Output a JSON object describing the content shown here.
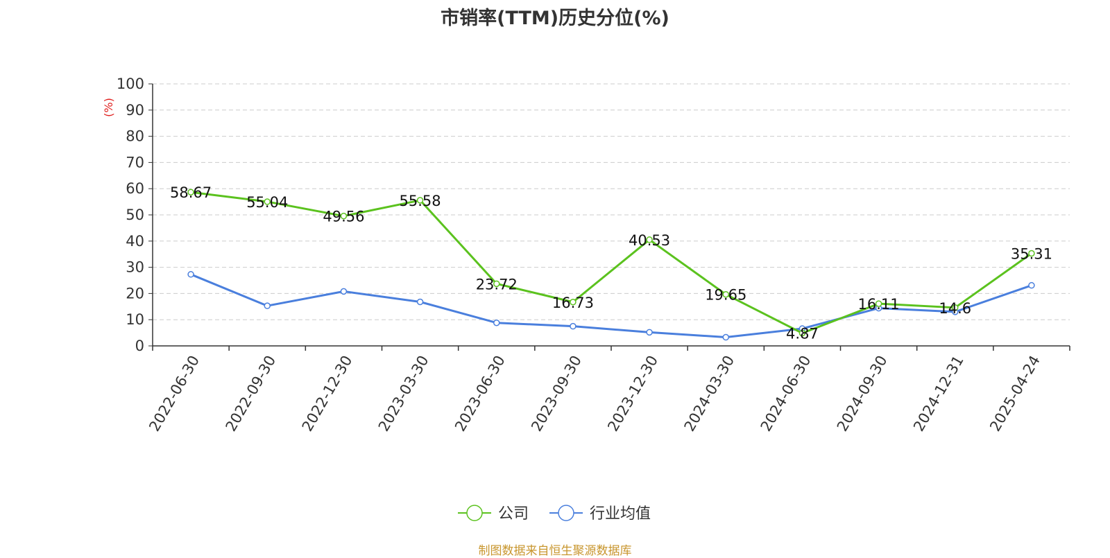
{
  "chart_data": {
    "type": "line",
    "title": "市销率(TTM)历史分位(%)",
    "ylabel": "(%)",
    "xlabel": "",
    "ylim": [
      0,
      100
    ],
    "yticks": [
      "0",
      "10",
      "20",
      "30",
      "40",
      "50",
      "60",
      "70",
      "80",
      "90",
      "100"
    ],
    "grid": true,
    "legend_position": "bottom-center",
    "categories": [
      "2022-06-30",
      "2022-09-30",
      "2022-12-30",
      "2023-03-30",
      "2023-06-30",
      "2023-09-30",
      "2023-12-30",
      "2024-03-30",
      "2024-06-30",
      "2024-09-30",
      "2024-12-31",
      "2025-04-24"
    ],
    "series": [
      {
        "name": "公司",
        "color": "#5bc21e",
        "values": [
          58.67,
          55.04,
          49.56,
          55.58,
          23.72,
          16.73,
          40.53,
          19.65,
          4.87,
          16.11,
          14.6,
          35.31
        ],
        "data_labels": [
          "58.67",
          "55.04",
          "49.56",
          "55.58",
          "23.72",
          "16.73",
          "40.53",
          "19.65",
          "4.87",
          "16.11",
          "14.6",
          "35.31"
        ]
      },
      {
        "name": "行业均值",
        "color": "#4a7fdd",
        "values": [
          27.3,
          15.3,
          20.8,
          16.8,
          8.8,
          7.5,
          5.2,
          3.3,
          6.6,
          14.4,
          13.0,
          23.1
        ]
      }
    ],
    "ylabel_color": "#e0201e"
  },
  "footer": {
    "source": "制图数据来自恒生聚源数据库"
  }
}
